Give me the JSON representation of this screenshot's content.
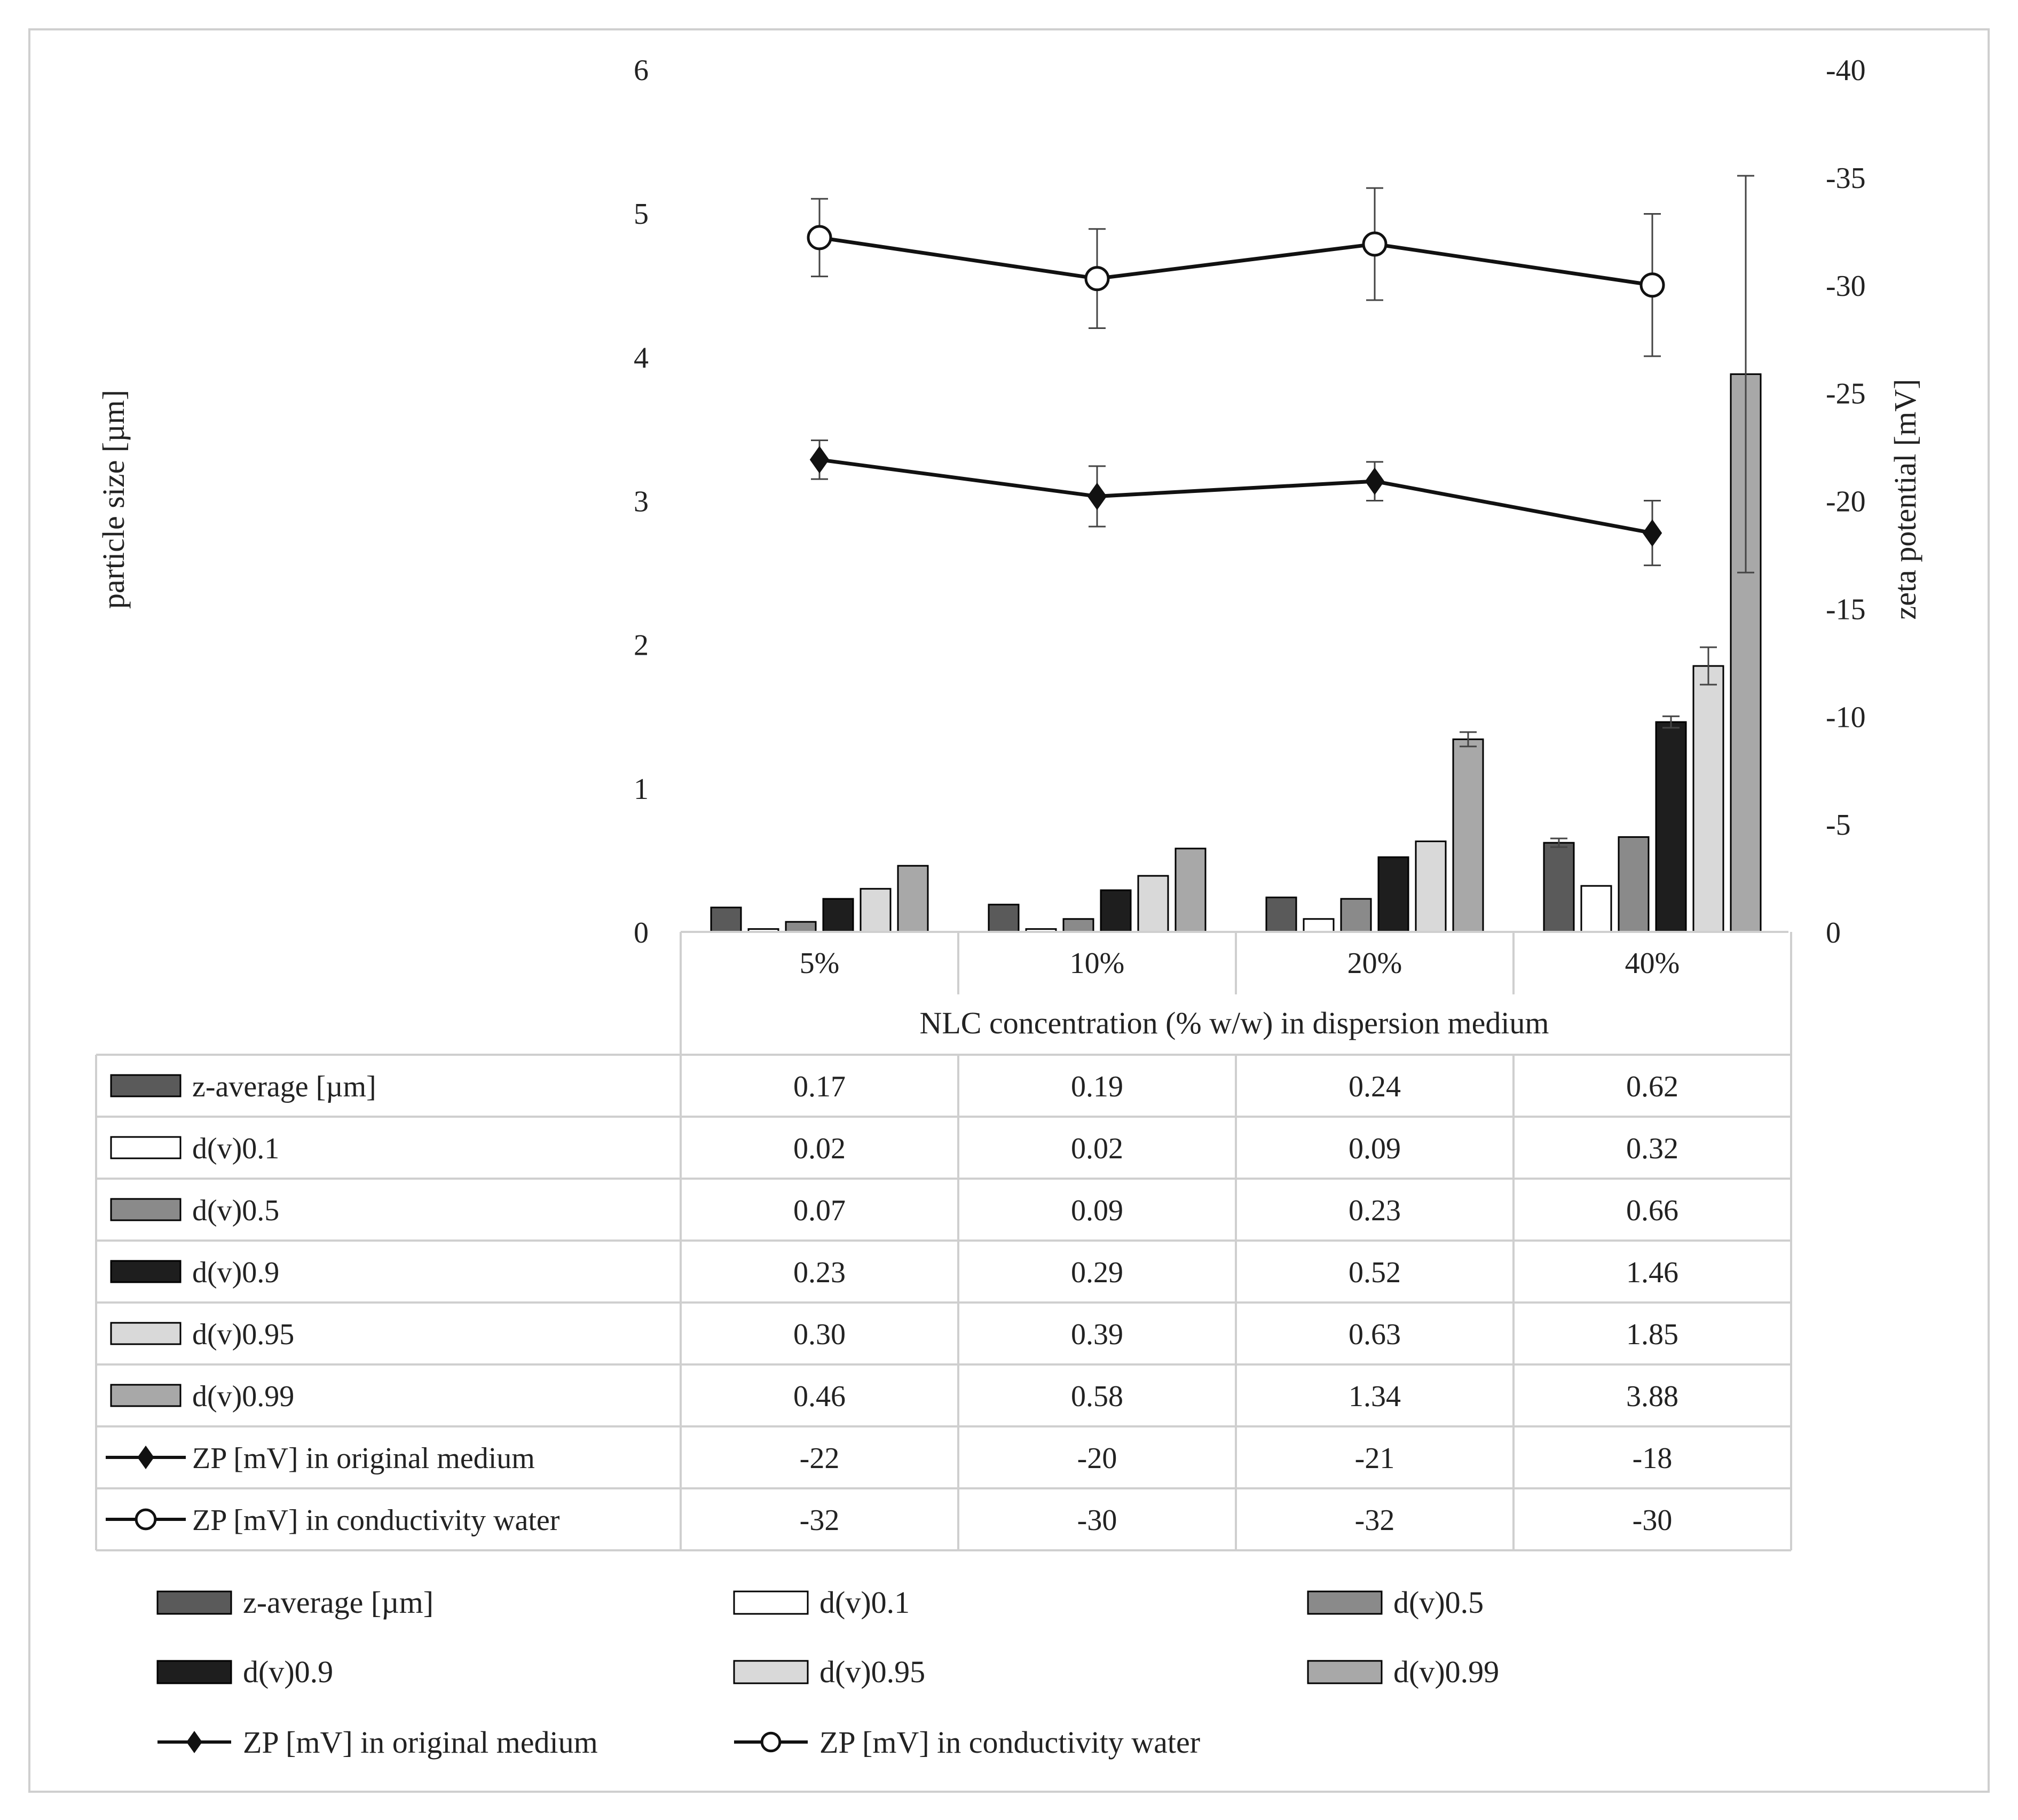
{
  "chart_data": {
    "type": "bar",
    "title": "",
    "xlabel": "NLC concentration (% w/w) in dispersion medium",
    "ylabel": "particle size [µm]",
    "y2label": "zeta potential [mV]",
    "ylim": [
      0,
      6
    ],
    "y_ticks": [
      "0",
      "1",
      "2",
      "3",
      "4",
      "5",
      "6"
    ],
    "y2lim": [
      0,
      -40
    ],
    "y2_ticks": [
      "0",
      "-5",
      "-10",
      "-15",
      "-20",
      "-25",
      "-30",
      "-35",
      "-40"
    ],
    "categories": [
      "5%",
      "10%",
      "20%",
      "40%"
    ],
    "series": [
      {
        "name": "z-average [µm]",
        "kind": "bar",
        "color": "#5a5a5a",
        "values": [
          0.17,
          0.19,
          0.24,
          0.62
        ],
        "errors": [
          0.0,
          0.0,
          0.0,
          0.03
        ],
        "labels": [
          "0.17",
          "0.19",
          "0.24",
          "0.62"
        ]
      },
      {
        "name": "d(v)0.1",
        "kind": "bar",
        "color": "#ffffff",
        "values": [
          0.02,
          0.02,
          0.09,
          0.32
        ],
        "errors": [
          0.0,
          0.0,
          0.0,
          0.0
        ],
        "labels": [
          "0.02",
          "0.02",
          "0.09",
          "0.32"
        ]
      },
      {
        "name": "d(v)0.5",
        "kind": "bar",
        "color": "#8a8a8a",
        "values": [
          0.07,
          0.09,
          0.23,
          0.66
        ],
        "errors": [
          0.0,
          0.0,
          0.0,
          0.0
        ],
        "labels": [
          "0.07",
          "0.09",
          "0.23",
          "0.66"
        ]
      },
      {
        "name": "d(v)0.9",
        "kind": "bar",
        "color": "#1e1e1e",
        "values": [
          0.23,
          0.29,
          0.52,
          1.46
        ],
        "errors": [
          0.0,
          0.0,
          0.0,
          0.04
        ],
        "labels": [
          "0.23",
          "0.29",
          "0.52",
          "1.46"
        ]
      },
      {
        "name": "d(v)0.95",
        "kind": "bar",
        "color": "#d9d9d9",
        "values": [
          0.3,
          0.39,
          0.63,
          1.85
        ],
        "errors": [
          0.0,
          0.0,
          0.0,
          0.13
        ],
        "labels": [
          "0.30",
          "0.39",
          "0.63",
          "1.85"
        ]
      },
      {
        "name": "d(v)0.99",
        "kind": "bar",
        "color": "#a8a8a8",
        "values": [
          0.46,
          0.58,
          1.34,
          3.88
        ],
        "errors": [
          0.0,
          0.0,
          0.05,
          1.38
        ],
        "labels": [
          "0.46",
          "0.58",
          "1.34",
          "3.88"
        ]
      },
      {
        "name": "ZP [mV] in original medium",
        "kind": "line",
        "axis": "y2",
        "marker": "diamond",
        "values": [
          -21.9,
          -20.2,
          -20.9,
          -18.5
        ],
        "errors": [
          0.9,
          1.4,
          0.9,
          1.5
        ],
        "labels": [
          "-22",
          "-20",
          "-21",
          "-18"
        ]
      },
      {
        "name": "ZP [mV] in conductivity water",
        "kind": "line",
        "axis": "y2",
        "marker": "circle",
        "values": [
          -32.2,
          -30.3,
          -31.9,
          -30.0
        ],
        "errors": [
          1.8,
          2.3,
          2.6,
          3.3
        ],
        "labels": [
          "-32",
          "-30",
          "-32",
          "-30"
        ]
      }
    ]
  }
}
